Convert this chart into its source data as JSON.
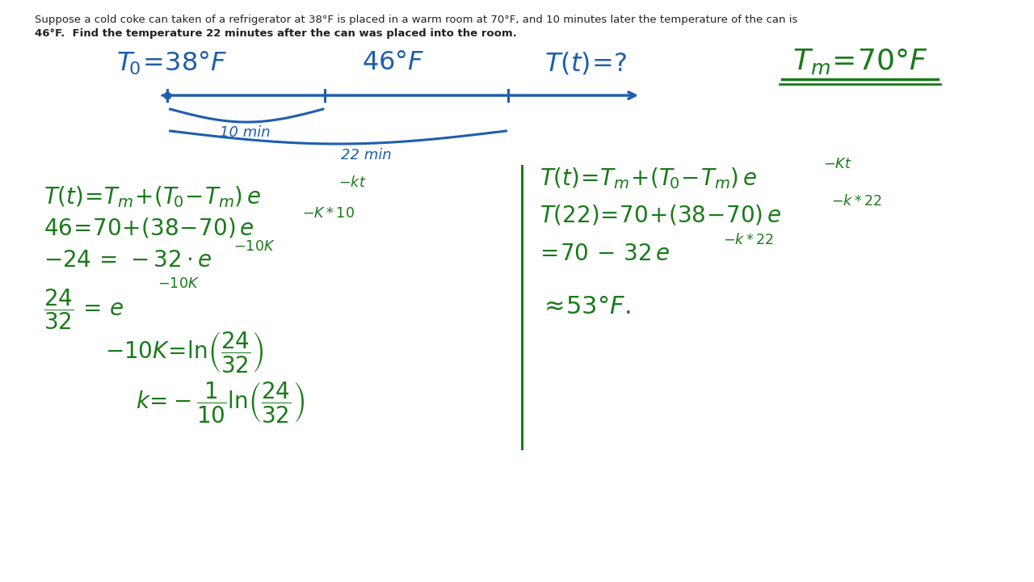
{
  "background_color": "#ffffff",
  "blue_color": "#1e5ead",
  "green_color": "#1a7a1a",
  "black_color": "#222222",
  "figsize": [
    12.8,
    7.2
  ],
  "dpi": 100,
  "problem_line1": "Suppose a cold coke can taken of a refrigerator at 38°F is placed in a warm room at 70°F, and 10 minutes later the temperature of the can is",
  "problem_line2": "46°F.  Find the temperature 22 minutes after the can was placed into the room."
}
